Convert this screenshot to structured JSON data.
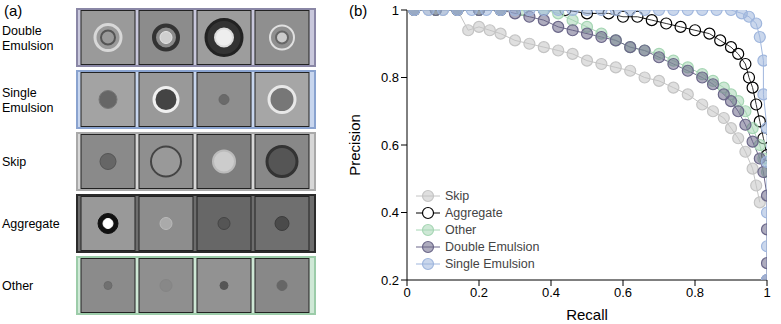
{
  "image_panel": {
    "label": "(a)",
    "rows": [
      "Double Emulsion",
      "Single Emulsion",
      "Skip",
      "Aggregate",
      "Other"
    ]
  },
  "chart_data": {
    "type": "line",
    "title": "(b)",
    "x_label": "Recall",
    "y_label": "Precision",
    "xlim": [
      0,
      1
    ],
    "xticks": [
      0,
      0.2,
      0.4,
      0.6,
      0.8,
      1
    ],
    "ylim": [
      0.2,
      1
    ],
    "yticks": [
      0.2,
      0.4,
      0.6,
      0.8,
      1
    ],
    "grid": false,
    "legend": "lower left",
    "series": [
      {
        "name": "Skip",
        "color": "#c4c4c4",
        "marker": "circle",
        "x": [
          0.02,
          0.06,
          0.1,
          0.14,
          0.17,
          0.2,
          0.23,
          0.26,
          0.3,
          0.34,
          0.38,
          0.42,
          0.46,
          0.5,
          0.54,
          0.58,
          0.62,
          0.66,
          0.7,
          0.74,
          0.78,
          0.82,
          0.85,
          0.88,
          0.9,
          0.92,
          0.94,
          0.96,
          0.97,
          0.98
        ],
        "values": [
          1,
          1,
          1,
          1,
          0.94,
          0.95,
          0.94,
          0.93,
          0.91,
          0.9,
          0.89,
          0.88,
          0.87,
          0.85,
          0.84,
          0.83,
          0.82,
          0.8,
          0.79,
          0.77,
          0.75,
          0.72,
          0.7,
          0.68,
          0.65,
          0.62,
          0.58,
          0.53,
          0.48,
          0.43
        ]
      },
      {
        "name": "Aggregate",
        "color": "#000000",
        "marker": "open_circle",
        "x": [
          0.02,
          0.08,
          0.14,
          0.2,
          0.26,
          0.32,
          0.38,
          0.44,
          0.5,
          0.56,
          0.6,
          0.64,
          0.68,
          0.72,
          0.76,
          0.8,
          0.84,
          0.87,
          0.9,
          0.92,
          0.94,
          0.95,
          0.96,
          0.97,
          0.98,
          0.99,
          1.0
        ],
        "values": [
          1,
          1,
          1,
          1,
          1,
          1,
          1,
          1,
          0.99,
          0.99,
          0.98,
          0.98,
          0.97,
          0.96,
          0.95,
          0.94,
          0.93,
          0.91,
          0.89,
          0.87,
          0.84,
          0.8,
          0.77,
          0.72,
          0.67,
          0.62,
          0.57
        ]
      },
      {
        "name": "Other",
        "color": "#a6d6b4",
        "marker": "circle",
        "x": [
          0.02,
          0.08,
          0.14,
          0.2,
          0.26,
          0.32,
          0.38,
          0.42,
          0.46,
          0.5,
          0.54,
          0.58,
          0.62,
          0.66,
          0.7,
          0.74,
          0.78,
          0.82,
          0.85,
          0.88,
          0.9,
          0.92,
          0.94,
          0.96,
          0.98,
          0.99,
          1.0
        ],
        "values": [
          1,
          1,
          1,
          1,
          1,
          1,
          1,
          0.99,
          0.97,
          0.95,
          0.93,
          0.91,
          0.89,
          0.88,
          0.87,
          0.85,
          0.83,
          0.81,
          0.79,
          0.77,
          0.75,
          0.73,
          0.7,
          0.65,
          0.6,
          0.56,
          0.52
        ]
      },
      {
        "name": "Double Emulsion",
        "color": "#6b6789",
        "marker": "circle",
        "x": [
          0.02,
          0.08,
          0.14,
          0.2,
          0.26,
          0.3,
          0.34,
          0.38,
          0.42,
          0.46,
          0.5,
          0.54,
          0.58,
          0.62,
          0.66,
          0.7,
          0.74,
          0.78,
          0.82,
          0.85,
          0.88,
          0.9,
          0.92,
          0.94,
          0.96,
          0.98,
          0.99,
          1.0,
          1.0,
          1.0,
          1.0
        ],
        "values": [
          1,
          1,
          1,
          1,
          1,
          0.99,
          0.98,
          0.97,
          0.95,
          0.94,
          0.93,
          0.92,
          0.91,
          0.89,
          0.88,
          0.86,
          0.84,
          0.82,
          0.8,
          0.78,
          0.75,
          0.73,
          0.7,
          0.66,
          0.61,
          0.56,
          0.52,
          0.45,
          0.35,
          0.25,
          0.2
        ]
      },
      {
        "name": "Single Emulsion",
        "color": "#9fb6dd",
        "marker": "circle",
        "x": [
          0.02,
          0.06,
          0.1,
          0.14,
          0.18,
          0.22,
          0.26,
          0.3,
          0.34,
          0.38,
          0.42,
          0.46,
          0.5,
          0.54,
          0.58,
          0.62,
          0.66,
          0.7,
          0.74,
          0.78,
          0.82,
          0.86,
          0.9,
          0.93,
          0.95,
          0.97,
          0.98,
          0.99,
          0.99,
          1.0,
          1.0,
          1.0,
          1.0,
          1.0
        ],
        "values": [
          1,
          1,
          1,
          1,
          1,
          1,
          1,
          1,
          1,
          1,
          1,
          1,
          1,
          1,
          1,
          1,
          1,
          1,
          1,
          1,
          1,
          1,
          1,
          0.99,
          0.98,
          0.96,
          0.92,
          0.85,
          0.75,
          0.65,
          0.55,
          0.4,
          0.3,
          0.2
        ]
      }
    ]
  }
}
